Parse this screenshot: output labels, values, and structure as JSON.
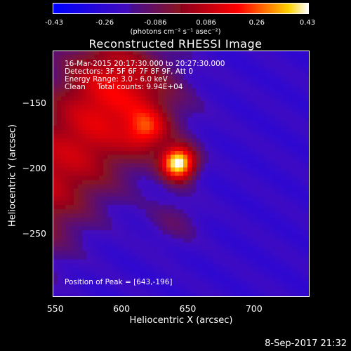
{
  "colorbar": {
    "ticks": [
      "-0.43",
      "-0.26",
      "-0.086",
      "0.086",
      "0.26",
      "0.43"
    ],
    "units": "(photons cm⁻² s⁻¹ asec⁻²)"
  },
  "info": {
    "time_range": "16-Mar-2015 20:17:30.000 to 20:27:30.000",
    "detectors": "Detectors: 3F 5F 6F 7F 8F 9F, Att 0",
    "energy": "Energy Range: 3.0 - 6.0 keV",
    "clean": "Clean     Total counts: 9.94E+04",
    "peak": "Position of Peak = [643,-196]"
  },
  "footer": {
    "timestamp": "8-Sep-2017 21:32"
  },
  "chart_data": {
    "type": "heatmap",
    "title": "Reconstructed RHESSI Image",
    "xlabel": "Heliocentric X (arcsec)",
    "ylabel": "Heliocentric Y (arcsec)",
    "xlim": [
      548,
      742
    ],
    "ylim": [
      -298,
      -110
    ],
    "xticks": [
      550,
      600,
      650,
      700
    ],
    "yticks": [
      -150,
      -200,
      -250
    ],
    "zlim": [
      -0.43,
      0.43
    ],
    "sources": [
      {
        "x": 643,
        "y": -196,
        "value": 0.43
      },
      {
        "x": 619,
        "y": -171,
        "value": 0.3
      }
    ],
    "colors": {
      "low": "#0000ff",
      "mid": "#ffffff",
      "high": "#ff0000"
    }
  }
}
